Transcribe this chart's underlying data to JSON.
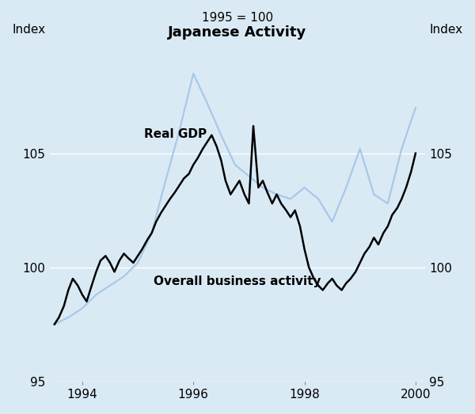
{
  "title": "Japanese Activity",
  "subtitle": "1995 = 100",
  "ylabel_left": "Index",
  "ylabel_right": "Index",
  "ylim": [
    95,
    110
  ],
  "yticks": [
    95,
    100,
    105
  ],
  "background_color": "#daeaf5",
  "plot_bg_color": "#daeaf5",
  "gdp_color": "#a8c8e8",
  "activity_color": "#000000",
  "gdp_linewidth": 1.6,
  "activity_linewidth": 1.8,
  "gdp_label": "Real GDP",
  "activity_label": "Overall business activity",
  "gdp_data": {
    "x": [
      1993.5,
      1993.75,
      1994.0,
      1994.25,
      1994.5,
      1994.75,
      1995.0,
      1995.25,
      1995.5,
      1995.75,
      1996.0,
      1996.25,
      1996.5,
      1996.75,
      1997.0,
      1997.25,
      1997.5,
      1997.75,
      1998.0,
      1998.25,
      1998.5,
      1998.75,
      1999.0,
      1999.25,
      1999.5,
      1999.75,
      2000.0
    ],
    "y": [
      97.5,
      97.8,
      98.2,
      98.8,
      99.2,
      99.6,
      100.2,
      101.5,
      103.8,
      106.0,
      108.5,
      107.2,
      105.8,
      104.5,
      104.0,
      103.5,
      103.2,
      103.0,
      103.5,
      103.0,
      102.0,
      103.5,
      105.2,
      103.2,
      102.8,
      105.2,
      107.0
    ]
  },
  "activity_data": {
    "x": [
      1993.5,
      1993.58,
      1993.67,
      1993.75,
      1993.83,
      1993.92,
      1994.0,
      1994.08,
      1994.17,
      1994.25,
      1994.33,
      1994.42,
      1994.5,
      1994.58,
      1994.67,
      1994.75,
      1994.83,
      1994.92,
      1995.0,
      1995.08,
      1995.17,
      1995.25,
      1995.33,
      1995.42,
      1995.5,
      1995.58,
      1995.67,
      1995.75,
      1995.83,
      1995.92,
      1996.0,
      1996.08,
      1996.17,
      1996.25,
      1996.33,
      1996.42,
      1996.5,
      1996.58,
      1996.67,
      1996.75,
      1996.83,
      1996.92,
      1997.0,
      1997.08,
      1997.17,
      1997.25,
      1997.33,
      1997.42,
      1997.5,
      1997.58,
      1997.67,
      1997.75,
      1997.83,
      1997.92,
      1998.0,
      1998.08,
      1998.17,
      1998.25,
      1998.33,
      1998.42,
      1998.5,
      1998.58,
      1998.67,
      1998.75,
      1998.83,
      1998.92,
      1999.0,
      1999.08,
      1999.17,
      1999.25,
      1999.33,
      1999.42,
      1999.5,
      1999.58,
      1999.67,
      1999.75,
      1999.83,
      1999.92,
      2000.0
    ],
    "y": [
      97.5,
      97.8,
      98.3,
      99.0,
      99.5,
      99.2,
      98.8,
      98.5,
      99.2,
      99.8,
      100.3,
      100.5,
      100.2,
      99.8,
      100.3,
      100.6,
      100.4,
      100.2,
      100.5,
      100.8,
      101.2,
      101.5,
      102.0,
      102.4,
      102.7,
      103.0,
      103.3,
      103.6,
      103.9,
      104.1,
      104.5,
      104.8,
      105.2,
      105.5,
      105.8,
      105.3,
      104.7,
      103.8,
      103.2,
      103.5,
      103.8,
      103.2,
      102.8,
      106.2,
      103.5,
      103.8,
      103.3,
      102.8,
      103.2,
      102.8,
      102.5,
      102.2,
      102.5,
      101.8,
      100.8,
      100.0,
      99.5,
      99.2,
      99.0,
      99.3,
      99.5,
      99.2,
      99.0,
      99.3,
      99.5,
      99.8,
      100.2,
      100.6,
      100.9,
      101.3,
      101.0,
      101.5,
      101.8,
      102.3,
      102.6,
      103.0,
      103.5,
      104.2,
      105.0
    ]
  },
  "xlim": [
    1993.42,
    2000.17
  ],
  "xticks": [
    1994,
    1996,
    1998,
    2000
  ],
  "xticklabels": [
    "1994",
    "1996",
    "1998",
    "2000"
  ]
}
